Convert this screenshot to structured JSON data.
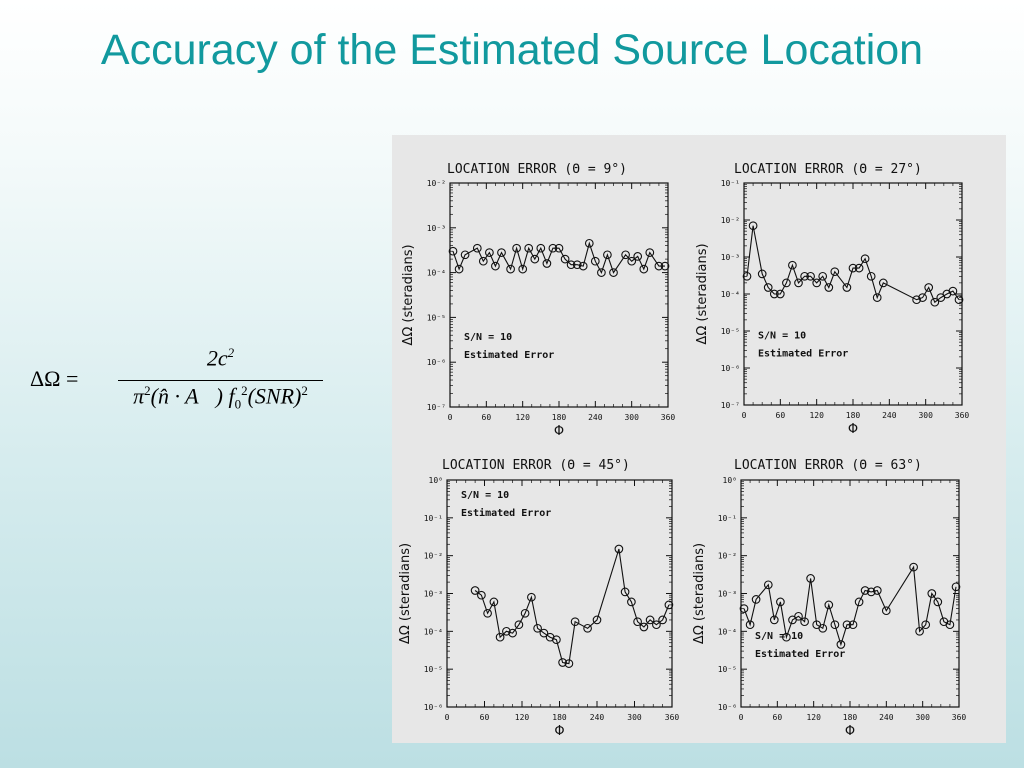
{
  "slide": {
    "title": "Accuracy of the Estimated Source Location"
  },
  "formula": {
    "lhs": "ΔΩ =",
    "numerator": "2c",
    "numerator_exp": "2",
    "denominator_parts": [
      "π",
      "2",
      "(n̂ · A⃗) f",
      "0",
      "2",
      "(SNR)",
      "2"
    ]
  },
  "chart_data": [
    {
      "type": "scatter",
      "title": "LOCATION ERROR (Θ = 9°)",
      "xlabel": "Φ",
      "ylabel": "ΔΩ (steradians)",
      "log_y": true,
      "xlim": [
        0,
        360
      ],
      "ylim": [
        1e-07,
        0.01
      ],
      "x_ticks": [
        "0",
        "60",
        "120",
        "180",
        "240",
        "300",
        "360"
      ],
      "y_ticks": [
        "10⁻⁷",
        "10⁻⁶",
        "10⁻⁵",
        "10⁻⁴",
        "10⁻³",
        "10⁻²"
      ],
      "annotations": [
        "S/N = 10",
        "Estimated Error"
      ],
      "annotation_position": "lower-left",
      "series": [
        {
          "x": [
            5,
            15,
            25,
            45,
            55,
            65,
            75,
            85,
            100,
            110,
            120,
            130,
            140,
            150,
            160,
            170,
            180,
            190,
            200,
            210,
            220,
            230,
            240,
            250,
            260,
            270,
            290,
            300,
            310,
            320,
            330,
            345,
            355
          ],
          "y": [
            0.0003,
            0.00012,
            0.00025,
            0.00035,
            0.00018,
            0.00028,
            0.00014,
            0.00028,
            0.00012,
            0.00035,
            0.00012,
            0.00035,
            0.0002,
            0.00035,
            0.00016,
            0.00035,
            0.00035,
            0.0002,
            0.00015,
            0.00015,
            0.00014,
            0.00045,
            0.00018,
            0.0001,
            0.00025,
            0.0001,
            0.00025,
            0.00018,
            0.00023,
            0.00012,
            0.00028,
            0.00014,
            0.00014
          ]
        }
      ]
    },
    {
      "type": "scatter",
      "title": "LOCATION ERROR (Θ = 27°)",
      "xlabel": "Φ",
      "ylabel": "ΔΩ (steradians)",
      "log_y": true,
      "xlim": [
        0,
        360
      ],
      "ylim": [
        1e-07,
        0.1
      ],
      "x_ticks": [
        "0",
        "60",
        "120",
        "180",
        "240",
        "300",
        "360"
      ],
      "y_ticks": [
        "10⁻⁷",
        "10⁻⁶",
        "10⁻⁵",
        "10⁻⁴",
        "10⁻³",
        "10⁻²",
        "10⁻¹"
      ],
      "annotations": [
        "S/N = 10",
        "Estimated Error"
      ],
      "annotation_position": "lower-left",
      "series": [
        {
          "x": [
            5,
            15,
            30,
            40,
            50,
            60,
            70,
            80,
            90,
            100,
            110,
            120,
            130,
            140,
            150,
            170,
            180,
            190,
            200,
            210,
            220,
            230,
            285,
            295,
            305,
            315,
            325,
            335,
            345,
            355
          ],
          "y": [
            0.0003,
            0.007,
            0.00035,
            0.00015,
            0.0001,
            0.0001,
            0.0002,
            0.0006,
            0.0002,
            0.0003,
            0.0003,
            0.0002,
            0.0003,
            0.00015,
            0.0004,
            0.00015,
            0.0005,
            0.0005,
            0.0009,
            0.0003,
            8e-05,
            0.0002,
            7e-05,
            8e-05,
            0.00015,
            6e-05,
            8e-05,
            0.0001,
            0.00012,
            7e-05
          ]
        }
      ]
    },
    {
      "type": "scatter",
      "title": "LOCATION ERROR (Θ = 45°)",
      "xlabel": "Φ",
      "ylabel": "ΔΩ (steradians)",
      "log_y": true,
      "xlim": [
        0,
        360
      ],
      "ylim": [
        1e-06,
        1
      ],
      "x_ticks": [
        "0",
        "60",
        "120",
        "180",
        "240",
        "300",
        "360"
      ],
      "y_ticks": [
        "10⁻⁶",
        "10⁻⁵",
        "10⁻⁴",
        "10⁻³",
        "10⁻²",
        "10⁻¹",
        "10⁰"
      ],
      "annotations": [
        "S/N = 10",
        "Estimated Error"
      ],
      "annotation_position": "upper-left",
      "series": [
        {
          "x": [
            45,
            55,
            65,
            75,
            85,
            95,
            105,
            115,
            125,
            135,
            145,
            155,
            165,
            175,
            185,
            195,
            205,
            225,
            240,
            275,
            285,
            295,
            305,
            315,
            325,
            335,
            345,
            355
          ],
          "y": [
            0.0012,
            0.0009,
            0.0003,
            0.0006,
            7e-05,
            0.0001,
            9e-05,
            0.00015,
            0.0003,
            0.0008,
            0.00012,
            9e-05,
            7e-05,
            6e-05,
            1.5e-05,
            1.4e-05,
            0.00018,
            0.00012,
            0.0002,
            0.015,
            0.0011,
            0.0006,
            0.00018,
            0.00013,
            0.0002,
            0.00015,
            0.0002,
            0.0005
          ]
        }
      ]
    },
    {
      "type": "scatter",
      "title": "LOCATION ERROR (Θ = 63°)",
      "xlabel": "Φ",
      "ylabel": "ΔΩ (steradians)",
      "log_y": true,
      "xlim": [
        0,
        360
      ],
      "ylim": [
        1e-06,
        1
      ],
      "x_ticks": [
        "0",
        "60",
        "120",
        "180",
        "240",
        "300",
        "360"
      ],
      "y_ticks": [
        "10⁻⁶",
        "10⁻⁵",
        "10⁻⁴",
        "10⁻³",
        "10⁻²",
        "10⁻¹",
        "10⁰"
      ],
      "annotations": [
        "S/N = 10",
        "Estimated Error"
      ],
      "annotation_position": "lower-left",
      "series": [
        {
          "x": [
            5,
            15,
            25,
            45,
            55,
            65,
            75,
            85,
            95,
            105,
            115,
            125,
            135,
            145,
            155,
            165,
            175,
            185,
            195,
            205,
            215,
            225,
            240,
            285,
            295,
            305,
            315,
            325,
            335,
            345,
            355
          ],
          "y": [
            0.0004,
            0.00015,
            0.0007,
            0.0017,
            0.0002,
            0.0006,
            7e-05,
            0.0002,
            0.00025,
            0.00018,
            0.0025,
            0.00015,
            0.00012,
            0.0005,
            0.00015,
            4.5e-05,
            0.00015,
            0.00015,
            0.0006,
            0.0012,
            0.0011,
            0.0012,
            0.00035,
            0.005,
            0.0001,
            0.00015,
            0.001,
            0.0006,
            0.00018,
            0.00015,
            0.0015
          ]
        }
      ]
    }
  ]
}
